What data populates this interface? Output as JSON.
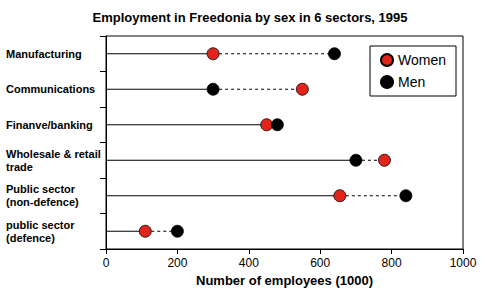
{
  "chart_data": {
    "type": "dumbbell",
    "title": "Employment in Freedonia by sex in 6 sectors, 1995",
    "categories": [
      "Manufacturing",
      "Communications",
      "Finanve/banking",
      "Wholesale & retail trade",
      "Public sector (non-defence)",
      "public sector (defence)"
    ],
    "series": [
      {
        "name": "Women",
        "color": "#e3241b",
        "values": [
          300,
          550,
          450,
          780,
          655,
          110
        ]
      },
      {
        "name": "Men",
        "color": "#000000",
        "values": [
          640,
          300,
          480,
          700,
          840,
          200
        ]
      }
    ],
    "xlabel": "Number of employees (1000)",
    "xlim": [
      0,
      1000
    ],
    "xticks": [
      0,
      200,
      400,
      600,
      800,
      1000
    ],
    "orientation": "horizontal",
    "legend": "upper right",
    "grid": false,
    "marker": "circle"
  }
}
